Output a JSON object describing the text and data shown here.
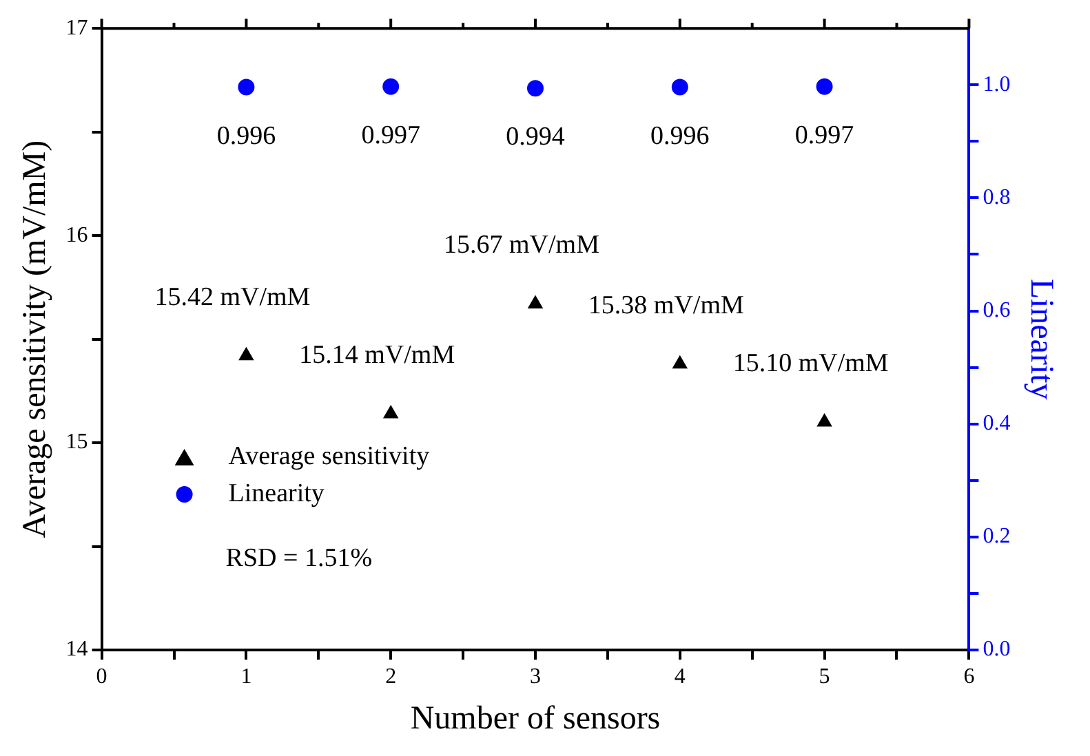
{
  "chart_data": {
    "type": "scatter",
    "xlabel": "Number of sensors",
    "ylabel": "Average sensitivity (mV/mM)",
    "y2label": "Linearity",
    "x": [
      1,
      2,
      3,
      4,
      5
    ],
    "series": [
      {
        "name": "Average sensitivity",
        "color": "#000000",
        "marker": "triangle",
        "values": [
          15.42,
          15.14,
          15.67,
          15.38,
          15.1
        ],
        "value_labels": [
          "15.42 mV/mM",
          "15.14 mV/mM",
          "15.67 mV/mM",
          "15.38 mV/mM",
          "15.10 mV/mM"
        ]
      },
      {
        "name": "Linearity",
        "color": "#0000ff",
        "marker": "circle",
        "axis": "y2",
        "values": [
          0.996,
          0.997,
          0.994,
          0.996,
          0.997
        ],
        "value_labels": [
          "0.996",
          "0.997",
          "0.994",
          "0.996",
          "0.997"
        ]
      }
    ],
    "xlim": [
      0,
      6
    ],
    "xticks": [
      0,
      {
        "value": 0.5,
        "label": null
      },
      1,
      {
        "value": 1.5,
        "label": null
      },
      2,
      {
        "value": 2.5,
        "label": null
      },
      3,
      {
        "value": 3.5,
        "label": null
      },
      4,
      {
        "value": 4.5,
        "label": null
      },
      5,
      {
        "value": 5.5,
        "label": null
      },
      6
    ],
    "ylim": [
      14,
      17
    ],
    "yticks": [
      14,
      {
        "value": 14.5,
        "label": null
      },
      15,
      {
        "value": 15.5,
        "label": null
      },
      16,
      {
        "value": 16.5,
        "label": null
      },
      17
    ],
    "y2lim": [
      0,
      1.1
    ],
    "y2ticks": [
      {
        "value": 0,
        "label": "0.0"
      },
      {
        "value": 0.1,
        "label": null
      },
      0.2,
      {
        "value": 0.3,
        "label": null
      },
      0.4,
      {
        "value": 0.5,
        "label": null
      },
      0.6,
      {
        "value": 0.7,
        "label": null
      },
      0.8,
      {
        "value": 0.9,
        "label": null
      },
      {
        "value": 1,
        "label": "1.0"
      }
    ],
    "annotations": [
      "RSD = 1.51%"
    ],
    "legend": "bottom left"
  }
}
